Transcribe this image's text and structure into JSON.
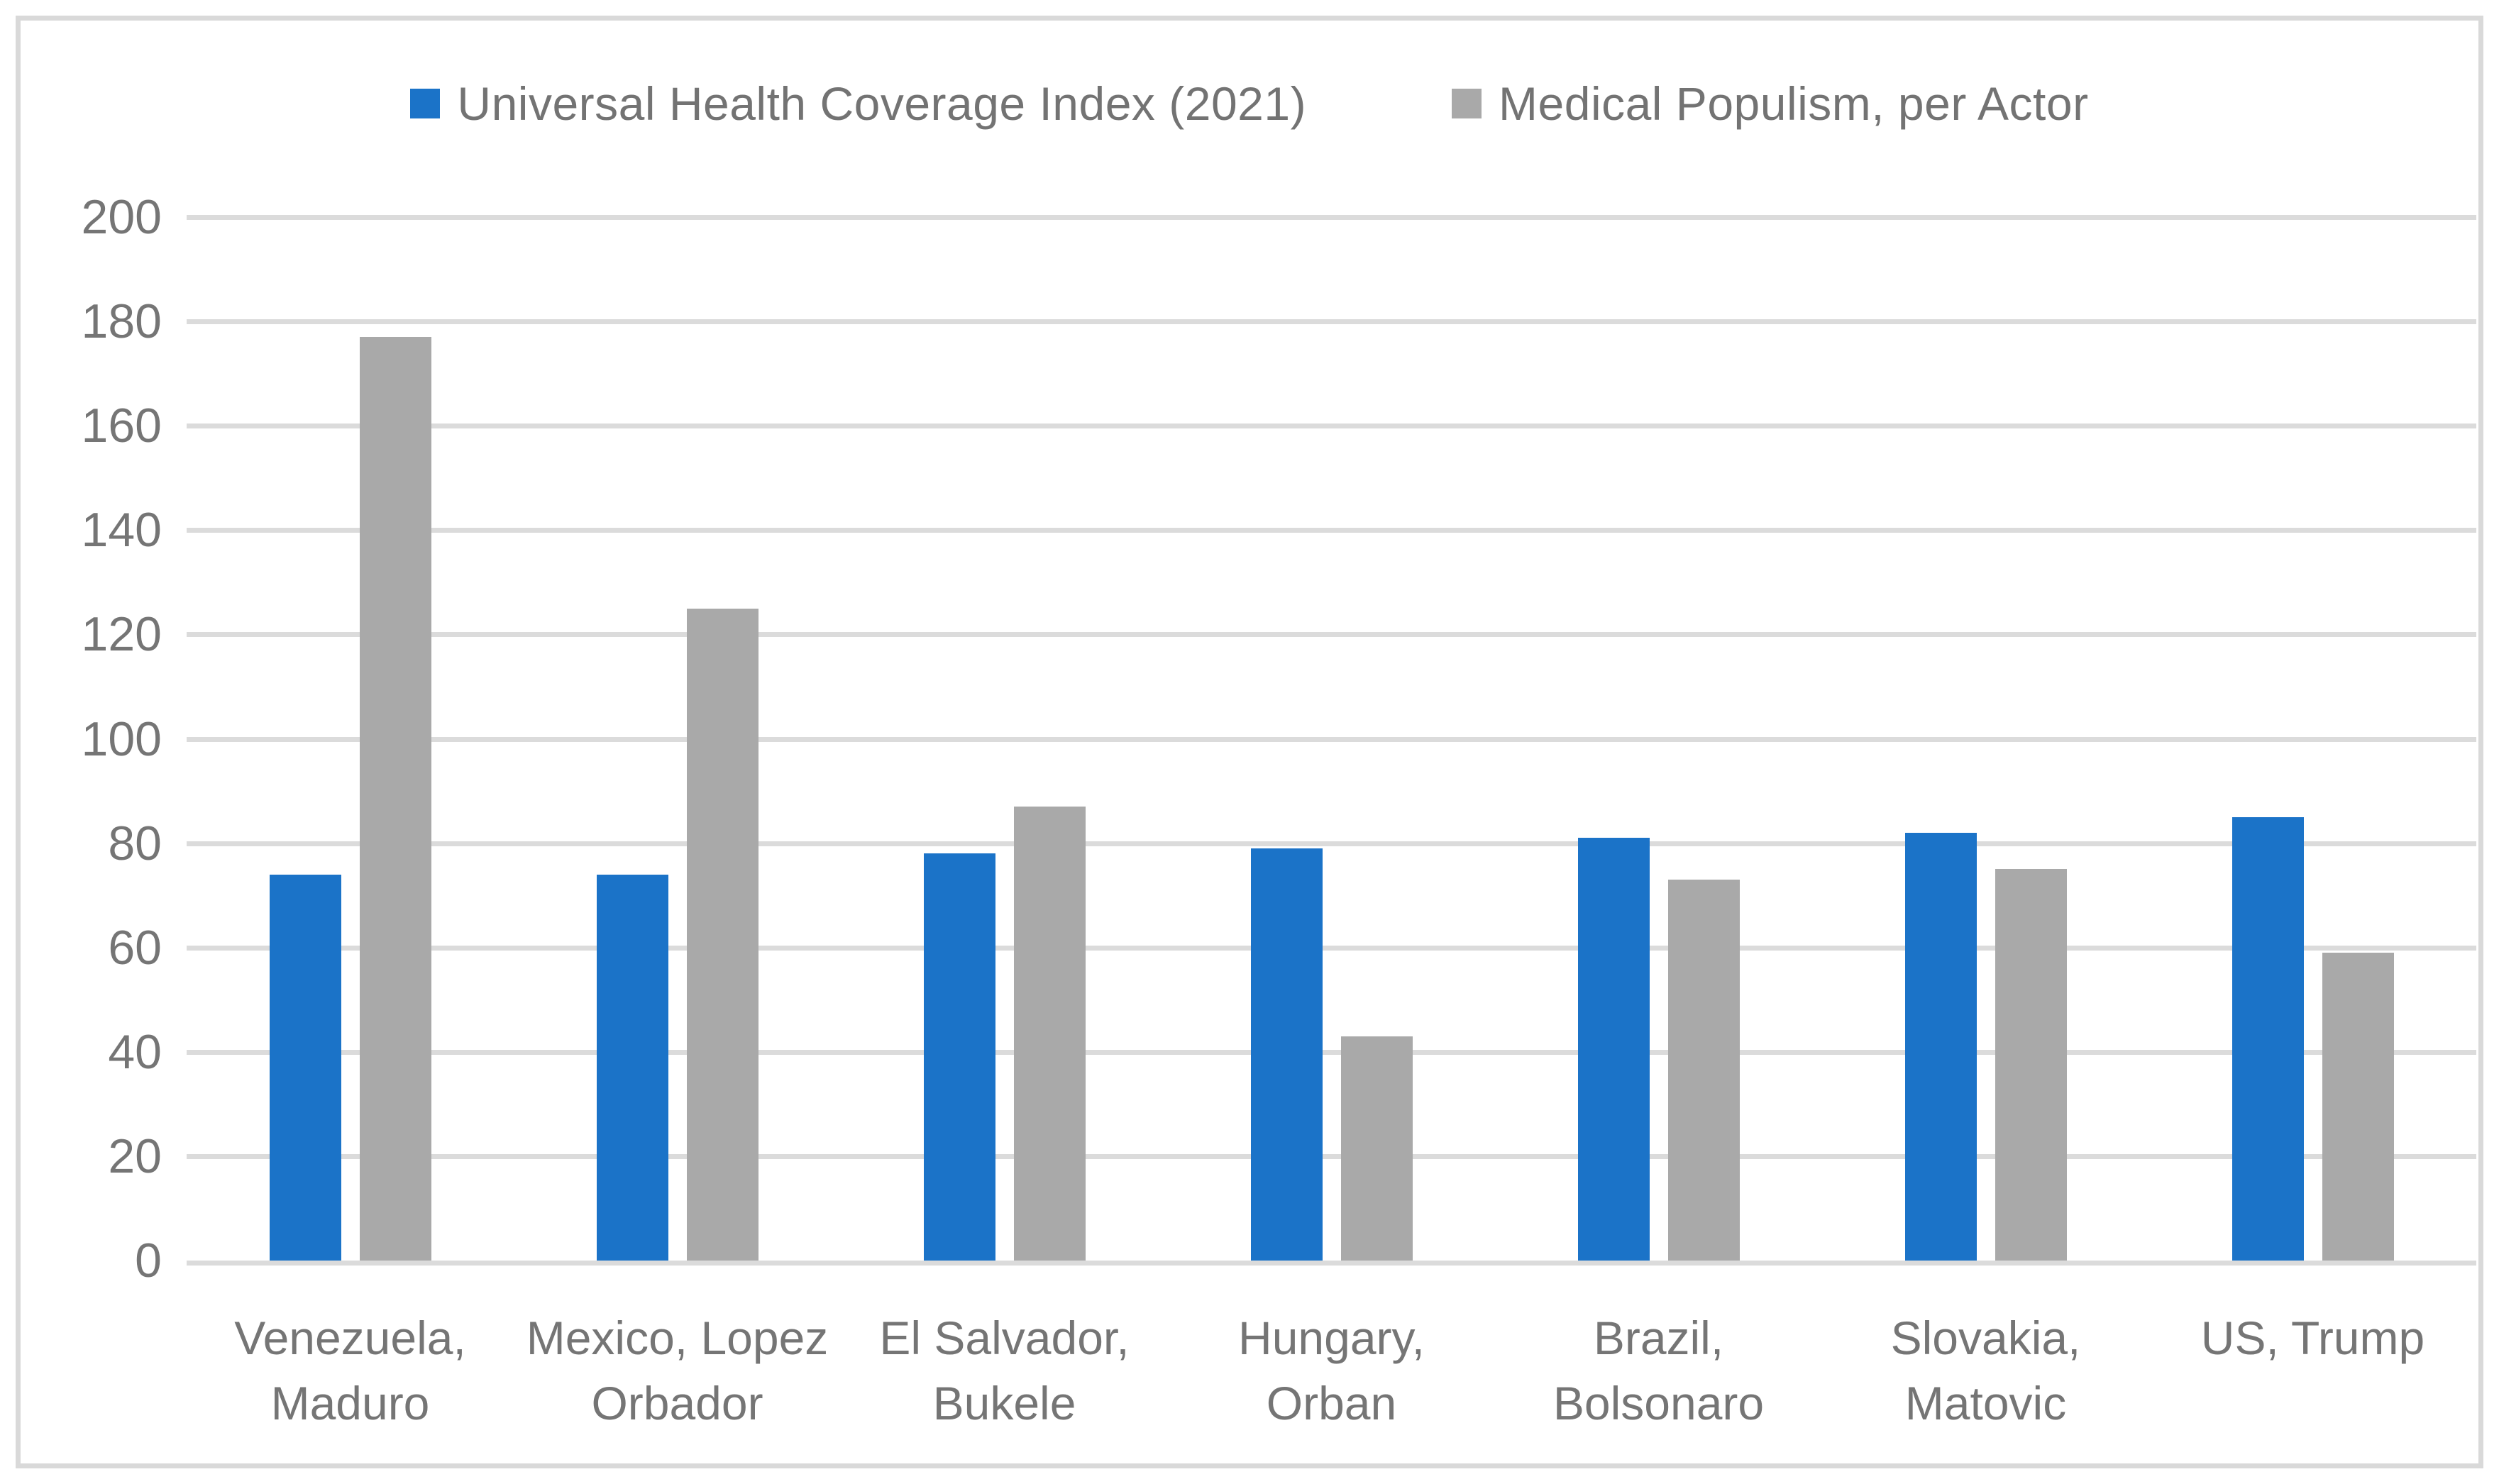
{
  "chart_data": {
    "type": "bar",
    "title": "",
    "xlabel": "",
    "ylabel": "",
    "ylim": [
      0,
      200
    ],
    "yticks": [
      0,
      20,
      40,
      60,
      80,
      100,
      120,
      140,
      160,
      180,
      200
    ],
    "grid": true,
    "legend_position": "top-center",
    "categories": [
      "Venezuela,\nMaduro",
      "Mexico, Lopez\nOrbador",
      "El Salvador,\nBukele",
      "Hungary,\nOrban",
      "Brazil,\nBolsonaro",
      "Slovakia,\nMatovic",
      "US, Trump"
    ],
    "series": [
      {
        "name": "Universal Health Coverage Index (2021)",
        "color": "#1B73C8",
        "values": [
          74,
          74,
          78,
          79,
          81,
          82,
          85
        ]
      },
      {
        "name": "Medical Populism, per Actor",
        "color": "#A9A9A9",
        "values": [
          177,
          125,
          87,
          43,
          73,
          75,
          59
        ]
      }
    ],
    "colors": {
      "gridline": "#DBDBDB",
      "axis_text": "#757575",
      "legend_text": "#737373",
      "chart_border": "#D9D9D9",
      "background": "#FFFFFF"
    }
  }
}
